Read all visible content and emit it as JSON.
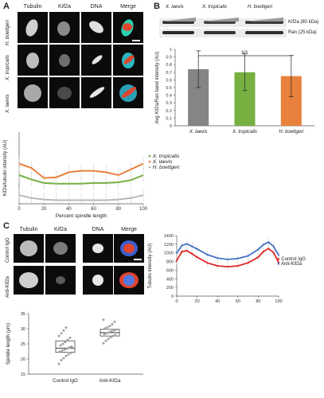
{
  "panelA": {
    "label": "A",
    "headers": [
      "Tubulin",
      "Kif2a",
      "DNA",
      "Merge"
    ],
    "rows": [
      "H. boettgeri",
      "X. tropicalis",
      "X. laevis"
    ]
  },
  "panelB": {
    "label": "B",
    "species": [
      "X. laevis",
      "X. tropicalis",
      "H. boettgeri"
    ],
    "blot_labels": [
      "Kif2a (80 kDa)",
      "Ran (25 kDa)"
    ],
    "ns": "NS"
  },
  "panelC": {
    "label": "C",
    "headers": [
      "Tubulin",
      "Kif2a",
      "DNA",
      "Merge"
    ],
    "rows": [
      "Control IgG",
      "Anti-Kif2a"
    ]
  },
  "chart_data": [
    {
      "type": "bar",
      "categories": [
        "X. laevis",
        "X. tropicalis",
        "H. boettgeri"
      ],
      "values": [
        0.74,
        0.7,
        0.65
      ],
      "errors": [
        0.24,
        0.24,
        0.27
      ],
      "colors": [
        "#858585",
        "#76b041",
        "#e8813c"
      ],
      "ylabel": "Avg Kif2a/Ran band intensity (AU)",
      "ylim": [
        0,
        1
      ],
      "yticks": [
        "0",
        "0.1",
        "0.2",
        "0.3",
        "0.4",
        "0.5",
        "0.6",
        "0.7",
        "0.8",
        "0.9",
        "1"
      ]
    },
    {
      "type": "line",
      "xlabel": "Percent spindle length",
      "ylabel": "Kif2a/tubulin intensity (AU)",
      "xticks": [
        "0",
        "20",
        "40",
        "60",
        "80",
        "100"
      ],
      "xlim": [
        0,
        100
      ],
      "ylim": [
        0,
        1
      ],
      "x": [
        0,
        10,
        20,
        30,
        40,
        50,
        60,
        70,
        80,
        90,
        100
      ],
      "series": [
        {
          "name": "X. tropicalis",
          "color": "#76b041",
          "values": [
            0.4,
            0.34,
            0.29,
            0.28,
            0.28,
            0.28,
            0.29,
            0.29,
            0.3,
            0.33,
            0.4
          ]
        },
        {
          "name": "X. laevis",
          "color": "#b8b8b8",
          "values": [
            0.12,
            0.08,
            0.06,
            0.05,
            0.05,
            0.05,
            0.05,
            0.05,
            0.06,
            0.08,
            0.12
          ]
        },
        {
          "name": "H. boettgeri",
          "color": "#e8813c",
          "values": [
            0.56,
            0.5,
            0.36,
            0.37,
            0.44,
            0.46,
            0.46,
            0.44,
            0.4,
            0.48,
            0.56
          ]
        }
      ]
    },
    {
      "type": "line",
      "ylabel": "Tubulin intensity (AU)",
      "yticks": [
        "0",
        "200",
        "400",
        "600",
        "800",
        "1000",
        "1200",
        "1400"
      ],
      "xticks": [
        "0",
        "20",
        "40",
        "60",
        "80",
        "100"
      ],
      "xlim": [
        0,
        100
      ],
      "ylim": [
        0,
        1400
      ],
      "x": [
        0,
        5,
        10,
        15,
        20,
        30,
        40,
        50,
        60,
        70,
        80,
        85,
        90,
        95,
        100
      ],
      "series": [
        {
          "name": "Anti-Kif2a",
          "color": "#4472c4",
          "values": [
            1000,
            1170,
            1210,
            1150,
            1090,
            960,
            880,
            850,
            870,
            930,
            1080,
            1190,
            1250,
            1150,
            950
          ]
        },
        {
          "name": "Control IgG",
          "color": "#e02727",
          "values": [
            820,
            1030,
            1050,
            980,
            900,
            770,
            700,
            680,
            700,
            770,
            900,
            1030,
            1100,
            1010,
            780
          ]
        }
      ]
    },
    {
      "type": "scatter",
      "ylabel": "Spindle length (μm)",
      "yticks": [
        "15",
        "20",
        "25",
        "30",
        "35"
      ],
      "ylim": [
        15,
        35
      ],
      "categories": [
        "Control IgG",
        "Anti-Kif2a"
      ],
      "box": [
        {
          "q1": 22.2,
          "median": 23.6,
          "q3": 26.0
        },
        {
          "q1": 27.6,
          "median": 28.7,
          "q3": 29.8
        }
      ],
      "points": [
        [
          18.4,
          19.6,
          20.3,
          21.0,
          21.5,
          22.0,
          22.4,
          22.8,
          23.1,
          23.4,
          23.8,
          24.1,
          24.5,
          25.0,
          25.6,
          26.3,
          27.0,
          27.6,
          28.5,
          29.4,
          30.4
        ],
        [
          25.2,
          26.0,
          26.6,
          27.2,
          27.6,
          27.9,
          28.2,
          28.5,
          28.8,
          29.1,
          29.4,
          29.7,
          30.1,
          30.5,
          30.9,
          31.5,
          32.3,
          33.0
        ]
      ]
    }
  ]
}
